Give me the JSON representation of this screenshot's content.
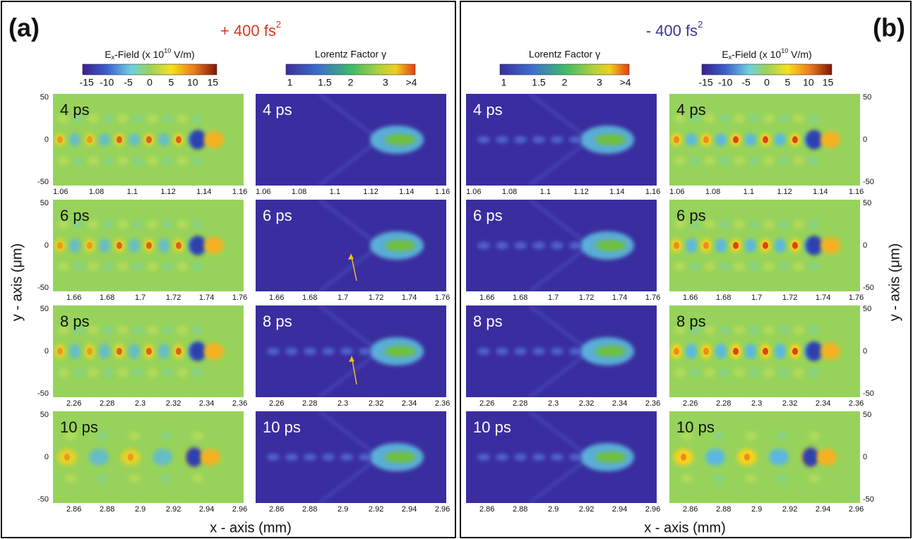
{
  "figure": {
    "panels": [
      {
        "label": "(a)",
        "title": {
          "text": "+ 400 fs",
          "sup": "2"
        },
        "x_axis_label": "x - axis (mm)",
        "y_axis_label": "y - axis (μm)"
      },
      {
        "label": "(b)",
        "title": {
          "text": "- 400 fs",
          "sup": "2"
        },
        "x_axis_label": "x - axis (mm)",
        "y_axis_label": "y - axis (μm)"
      }
    ],
    "colorbars": {
      "ex_field": {
        "label": {
          "main": "E",
          "sub": "x",
          "mid": "-Field (x 10",
          "sup": "10",
          "end": " V/m)"
        },
        "ticks": [
          "-15",
          "-10",
          "-5",
          "0",
          "5",
          "10",
          "15"
        ]
      },
      "lorentz": {
        "label": "Lorentz Factor γ",
        "ticks": [
          "1",
          "1.5",
          "2",
          "3",
          ">4"
        ]
      }
    },
    "times": [
      "4 ps",
      "6 ps",
      "8 ps",
      "10 ps"
    ],
    "x_ticks": [
      [
        "1.06",
        "1.08",
        "1.1",
        "1.12",
        "1.14",
        "1.16"
      ],
      [
        "1.66",
        "1.68",
        "1.7",
        "1.72",
        "1.74",
        "1.76"
      ],
      [
        "2.26",
        "2.28",
        "2.3",
        "2.32",
        "2.34",
        "2.36"
      ],
      [
        "2.86",
        "2.88",
        "2.9",
        "2.92",
        "2.94",
        "2.96"
      ]
    ],
    "y_ticks": [
      "50",
      "0",
      "-50"
    ]
  }
}
